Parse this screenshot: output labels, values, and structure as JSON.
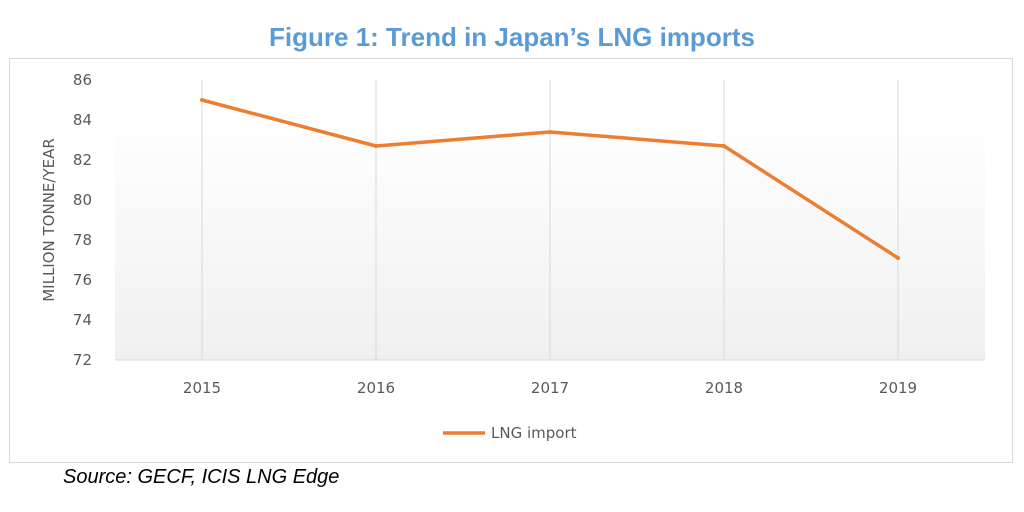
{
  "figure": {
    "title": "Figure 1: Trend in Japan’s LNG imports",
    "source": "Source: GECF, ICIS LNG Edge"
  },
  "colors": {
    "title": "#5b9bd5",
    "series": "#ed7d31",
    "grid": "#d9d9d9",
    "text": "#595959"
  },
  "chart_data": {
    "type": "line",
    "title": "Figure 1: Trend in Japan’s LNG imports",
    "xlabel": "",
    "ylabel": "MILLION TONNE/YEAR",
    "categories": [
      "2015",
      "2016",
      "2017",
      "2018",
      "2019"
    ],
    "series": [
      {
        "name": "LNG import",
        "values": [
          85.0,
          82.7,
          83.4,
          82.7,
          77.1
        ]
      }
    ],
    "ylim": [
      72,
      86
    ],
    "yticks": [
      72,
      74,
      76,
      78,
      80,
      82,
      84,
      86
    ],
    "grid": true,
    "legend": "bottom-center"
  }
}
